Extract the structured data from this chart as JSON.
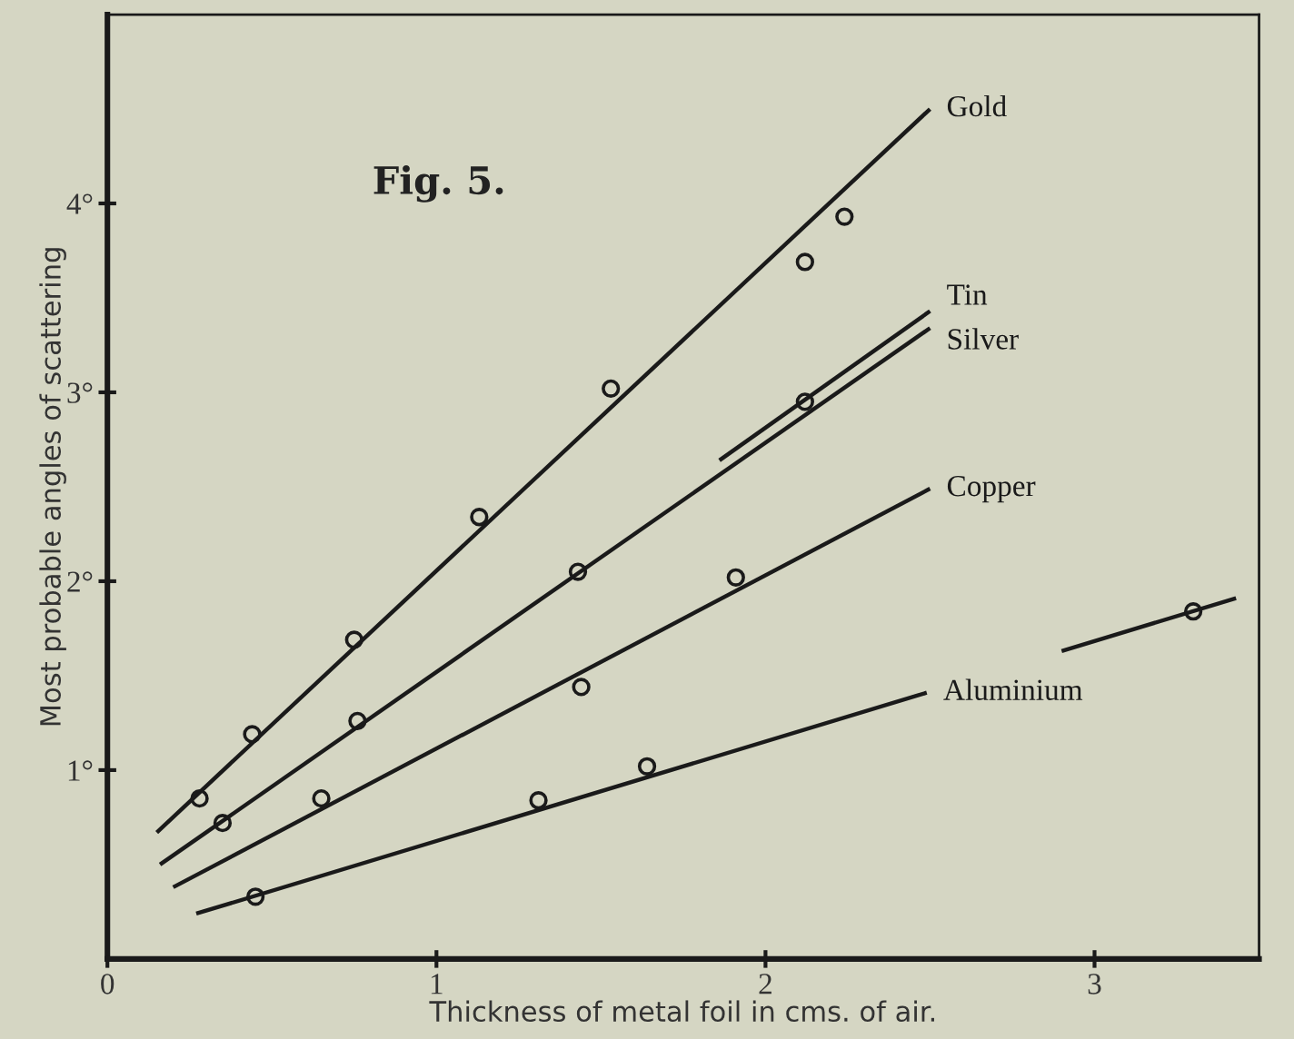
{
  "chart_data": {
    "type": "scatter",
    "title": "Fig. 5.",
    "xlabel": "Thickness of metal foil in cms. of air.",
    "ylabel": "Most probable angles of scattering",
    "xlim": [
      0,
      3.5
    ],
    "ylim": [
      0,
      5
    ],
    "xticks": [
      0,
      1,
      2,
      3
    ],
    "yticks": [
      {
        "value": 1,
        "label": "1°"
      },
      {
        "value": 2,
        "label": "2°"
      },
      {
        "value": 3,
        "label": "3°"
      },
      {
        "value": 4,
        "label": "4°"
      }
    ],
    "grid": false,
    "legend": false,
    "series": [
      {
        "type": "line",
        "name": "Gold",
        "marker": "none",
        "color": "#1a1a1a",
        "x": [
          0.15,
          2.5
        ],
        "values": [
          0.67,
          4.5
        ]
      },
      {
        "marker": "circle",
        "color": "#1a1a1a",
        "x": [
          0.28,
          0.44,
          0.75,
          1.13,
          1.53,
          2.12,
          2.24
        ],
        "values": [
          0.85,
          1.19,
          1.69,
          2.34,
          3.02,
          3.69,
          3.93
        ]
      },
      {
        "type": "line",
        "name": "Tin",
        "marker": "none",
        "color": "#1a1a1a",
        "x": [
          1.86,
          2.5
        ],
        "values": [
          2.64,
          3.43
        ]
      },
      {
        "type": "line",
        "name": "Silver",
        "marker": "none",
        "color": "#1a1a1a",
        "x": [
          0.16,
          2.5
        ],
        "values": [
          0.5,
          3.34
        ]
      },
      {
        "marker": "circle",
        "color": "#1a1a1a",
        "x": [
          0.35,
          0.76,
          1.43,
          2.12
        ],
        "values": [
          0.72,
          1.26,
          2.05,
          2.95
        ]
      },
      {
        "type": "line",
        "name": "Copper",
        "marker": "none",
        "color": "#1a1a1a",
        "x": [
          0.2,
          2.5
        ],
        "values": [
          0.38,
          2.49
        ]
      },
      {
        "marker": "circle",
        "color": "#1a1a1a",
        "x": [
          0.65,
          1.44,
          1.91
        ],
        "values": [
          0.85,
          1.44,
          2.02
        ]
      },
      {
        "type": "line",
        "name": "Aluminium",
        "marker": "none",
        "color": "#1a1a1a",
        "x": [
          0.27,
          2.49,
          2.7,
          2.9,
          3.43
        ],
        "values": [
          0.24,
          1.41,
          null,
          1.63,
          1.91
        ]
      },
      {
        "marker": "circle",
        "color": "#1a1a1a",
        "x": [
          0.45,
          1.31,
          1.64,
          3.3
        ],
        "values": [
          0.33,
          0.84,
          1.02,
          1.84
        ]
      }
    ]
  }
}
